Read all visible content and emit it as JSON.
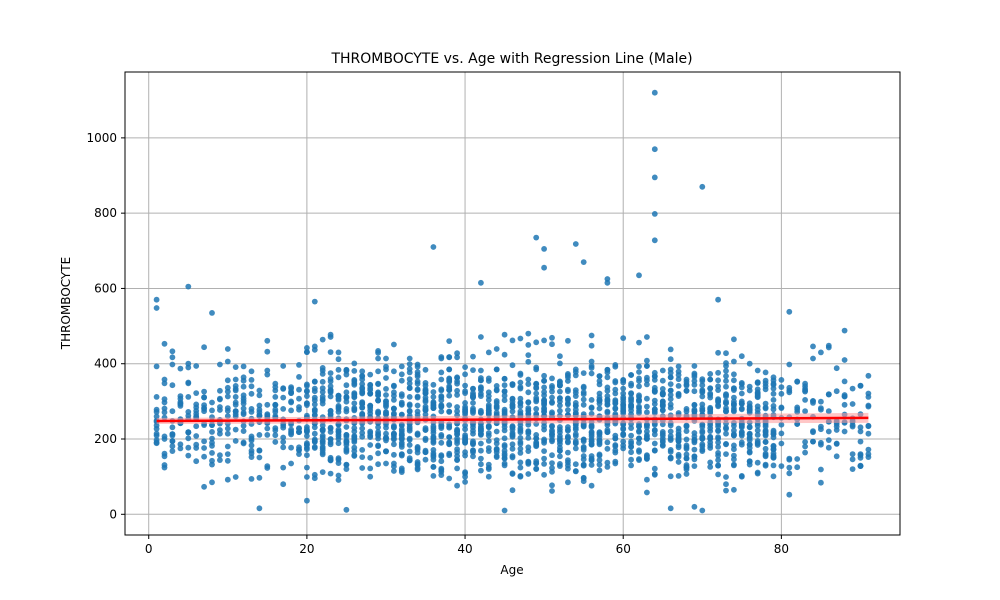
{
  "chart_data": {
    "type": "scatter",
    "title": "THROMBOCYTE vs. Age with Regression Line (Male)",
    "xlabel": "Age",
    "ylabel": "THROMBOCYTE",
    "xlim": [
      -3,
      95
    ],
    "ylim": [
      -55,
      1175
    ],
    "x_ticks": [
      0,
      20,
      40,
      60,
      80
    ],
    "y_ticks": [
      0,
      200,
      400,
      600,
      800,
      1000
    ],
    "grid": true,
    "colors": {
      "points": "#1f77b4",
      "regression": "#ff0000",
      "band": "#ff9999",
      "grid": "#b0b0b0"
    },
    "regression": {
      "x": [
        1,
        91
      ],
      "y": [
        248,
        256
      ]
    },
    "highlighted_points": [
      {
        "x": 1,
        "y": 570
      },
      {
        "x": 1,
        "y": 548
      },
      {
        "x": 5,
        "y": 605
      },
      {
        "x": 8,
        "y": 535
      },
      {
        "x": 21,
        "y": 565
      },
      {
        "x": 36,
        "y": 710
      },
      {
        "x": 42,
        "y": 615
      },
      {
        "x": 49,
        "y": 735
      },
      {
        "x": 50,
        "y": 705
      },
      {
        "x": 50,
        "y": 655
      },
      {
        "x": 54,
        "y": 718
      },
      {
        "x": 55,
        "y": 670
      },
      {
        "x": 58,
        "y": 625
      },
      {
        "x": 58,
        "y": 615
      },
      {
        "x": 62,
        "y": 635
      },
      {
        "x": 64,
        "y": 1120
      },
      {
        "x": 64,
        "y": 970
      },
      {
        "x": 64,
        "y": 895
      },
      {
        "x": 64,
        "y": 798
      },
      {
        "x": 64,
        "y": 728
      },
      {
        "x": 70,
        "y": 870
      },
      {
        "x": 72,
        "y": 570
      },
      {
        "x": 81,
        "y": 538
      },
      {
        "x": 88,
        "y": 488
      },
      {
        "x": 91,
        "y": 235
      },
      {
        "x": 90,
        "y": 160
      },
      {
        "x": 90,
        "y": 150
      },
      {
        "x": 45,
        "y": 10
      },
      {
        "x": 25,
        "y": 12
      },
      {
        "x": 70,
        "y": 10
      },
      {
        "x": 69,
        "y": 20
      }
    ]
  }
}
